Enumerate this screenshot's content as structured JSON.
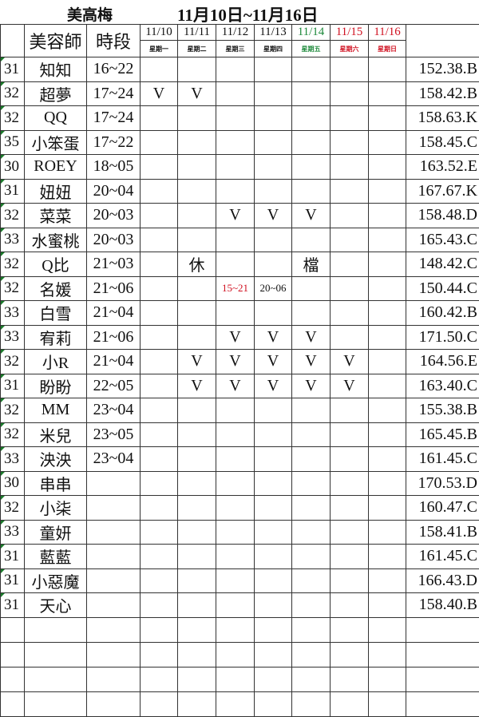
{
  "title": {
    "name": "美高梅",
    "range": "11月10日~11月16日"
  },
  "header": {
    "col_name": "美容師",
    "col_time": "時段",
    "dates": [
      {
        "d": "11/10",
        "w": "星期一",
        "c": ""
      },
      {
        "d": "11/11",
        "w": "星期二",
        "c": ""
      },
      {
        "d": "11/12",
        "w": "星期三",
        "c": ""
      },
      {
        "d": "11/13",
        "w": "星期四",
        "c": ""
      },
      {
        "d": "11/14",
        "w": "星期五",
        "c": "green"
      },
      {
        "d": "11/15",
        "w": "星期六",
        "c": "red"
      },
      {
        "d": "11/16",
        "w": "星期日",
        "c": "red"
      }
    ]
  },
  "colors": {
    "green": "#1f8a3c",
    "red": "#d01020"
  },
  "rows": [
    {
      "age": "31",
      "name": "知知",
      "time": "16~22",
      "days": [
        "",
        "",
        "",
        "",
        "",
        "",
        ""
      ],
      "info": "152.38.B"
    },
    {
      "age": "32",
      "name": "超夢",
      "time": "17~24",
      "days": [
        "V",
        "V",
        "",
        "",
        "",
        "",
        ""
      ],
      "info": "158.42.B"
    },
    {
      "age": "32",
      "name": "QQ",
      "time": "17~24",
      "days": [
        "",
        "",
        "",
        "",
        "",
        "",
        ""
      ],
      "info": "158.63.K"
    },
    {
      "age": "35",
      "name": "小笨蛋",
      "time": "17~22",
      "days": [
        "",
        "",
        "",
        "",
        "",
        "",
        ""
      ],
      "info": "158.45.C"
    },
    {
      "age": "30",
      "name": "ROEY",
      "time": "18~05",
      "days": [
        "",
        "",
        "",
        "",
        "",
        "",
        ""
      ],
      "info": "163.52.E"
    },
    {
      "age": "31",
      "name": "妞妞",
      "time": "20~04",
      "days": [
        "",
        "",
        "",
        "",
        "",
        "",
        ""
      ],
      "info": "167.67.K"
    },
    {
      "age": "32",
      "name": "菜菜",
      "time": "20~03",
      "days": [
        "",
        "",
        "V",
        "V",
        "V",
        "",
        ""
      ],
      "info": "158.48.D"
    },
    {
      "age": "33",
      "name": "水蜜桃",
      "time": "20~03",
      "days": [
        "",
        "",
        "",
        "",
        "",
        "",
        ""
      ],
      "info": "165.43.C"
    },
    {
      "age": "32",
      "name": "Q比",
      "time": "21~03",
      "days": [
        "",
        "休",
        "",
        "",
        "檔",
        "",
        ""
      ],
      "info": "148.42.C"
    },
    {
      "age": "32",
      "name": "名媛",
      "time": "21~06",
      "days": [
        "",
        "",
        "15~21",
        "20~06",
        "",
        "",
        ""
      ],
      "info": "150.44.C"
    },
    {
      "age": "33",
      "name": "白雪",
      "time": "21~04",
      "days": [
        "",
        "",
        "",
        "",
        "",
        "",
        ""
      ],
      "info": "160.42.B"
    },
    {
      "age": "33",
      "name": "宥莉",
      "time": "21~06",
      "days": [
        "",
        "",
        "V",
        "V",
        "V",
        "",
        ""
      ],
      "info": "171.50.C"
    },
    {
      "age": "32",
      "name": "小R",
      "time": "21~04",
      "days": [
        "",
        "V",
        "V",
        "V",
        "V",
        "V",
        ""
      ],
      "info": "164.56.E"
    },
    {
      "age": "31",
      "name": "盼盼",
      "time": "22~05",
      "days": [
        "",
        "V",
        "V",
        "V",
        "V",
        "V",
        ""
      ],
      "info": "163.40.C"
    },
    {
      "age": "32",
      "name": "MM",
      "time": "23~04",
      "days": [
        "",
        "",
        "",
        "",
        "",
        "",
        ""
      ],
      "info": "155.38.B"
    },
    {
      "age": "32",
      "name": "米兒",
      "time": "23~05",
      "days": [
        "",
        "",
        "",
        "",
        "",
        "",
        ""
      ],
      "info": "165.45.B"
    },
    {
      "age": "33",
      "name": "泱泱",
      "time": "23~04",
      "days": [
        "",
        "",
        "",
        "",
        "",
        "",
        ""
      ],
      "info": "161.45.C"
    },
    {
      "age": "30",
      "name": "串串",
      "time": "",
      "days": [
        "",
        "",
        "",
        "",
        "",
        "",
        ""
      ],
      "info": "170.53.D"
    },
    {
      "age": "32",
      "name": "小柒",
      "time": "",
      "days": [
        "",
        "",
        "",
        "",
        "",
        "",
        ""
      ],
      "info": "160.47.C"
    },
    {
      "age": "33",
      "name": "童妍",
      "time": "",
      "days": [
        "",
        "",
        "",
        "",
        "",
        "",
        ""
      ],
      "info": "158.41.B"
    },
    {
      "age": "31",
      "name": "藍藍",
      "time": "",
      "days": [
        "",
        "",
        "",
        "",
        "",
        "",
        ""
      ],
      "info": "161.45.C"
    },
    {
      "age": "31",
      "name": "小惡魔",
      "time": "",
      "days": [
        "",
        "",
        "",
        "",
        "",
        "",
        ""
      ],
      "info": "166.43.D"
    },
    {
      "age": "31",
      "name": "天心",
      "time": "",
      "days": [
        "",
        "",
        "",
        "",
        "",
        "",
        ""
      ],
      "info": "158.40.B"
    }
  ]
}
